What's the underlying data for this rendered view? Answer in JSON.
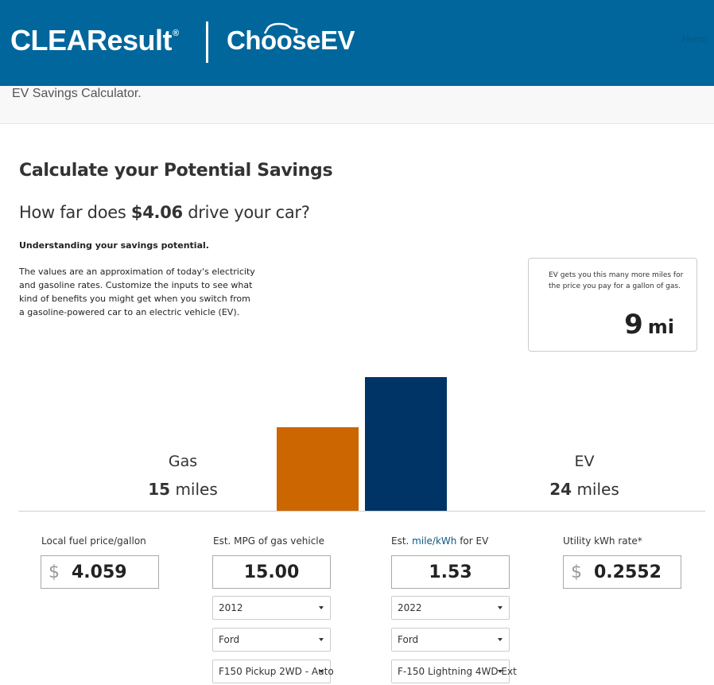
{
  "header": {
    "brand_left": "CLEAResult",
    "brand_left_mark": "®",
    "brand_right": "ChooseEV",
    "nav_home": "Home",
    "bg_color": "#00669c"
  },
  "subheader": {
    "title": "EV Savings Calculator."
  },
  "calculator": {
    "title": "Calculate your Potential Savings",
    "question_prefix": "How far does ",
    "question_amount": "$4.06",
    "question_suffix": " drive your car?",
    "understanding_title": "Understanding your savings potential.",
    "description": "The values are an approximation of today's electricity and gasoline rates. Customize the inputs to see what kind of benefits you might get when you switch from a gasoline-powered car to an electric vehicle (EV)."
  },
  "result": {
    "caption": "EV gets you this many more miles for the price you pay for a gallon of gas.",
    "value": "9",
    "unit": "mi"
  },
  "chart_data": {
    "type": "bar",
    "categories": [
      "Gas",
      "EV"
    ],
    "values": [
      15,
      24
    ],
    "colors": [
      "#cc6600",
      "#003366"
    ],
    "ylim": [
      0,
      24
    ]
  },
  "legend": {
    "gas_label": "Gas",
    "gas_miles": "15",
    "ev_label": "EV",
    "ev_miles": "24",
    "unit": "miles"
  },
  "inputs": {
    "fuel_price": {
      "label": "Local fuel price/gallon",
      "currency": "$",
      "value": "4.059"
    },
    "mpg": {
      "label": "Est. MPG of gas vehicle",
      "value": "15.00",
      "year": "2012",
      "make": "Ford",
      "model": "F150 Pickup 2WD - Auto"
    },
    "ev_efficiency": {
      "label_prefix": "Est. ",
      "label_link": "mile/kWh",
      "label_suffix": " for EV",
      "value": "1.53",
      "year": "2022",
      "make": "Ford",
      "model": "F-150 Lightning 4WD Ext"
    },
    "kwh_rate": {
      "label": "Utility kWh rate*",
      "currency": "$",
      "value": "0.2552"
    }
  }
}
